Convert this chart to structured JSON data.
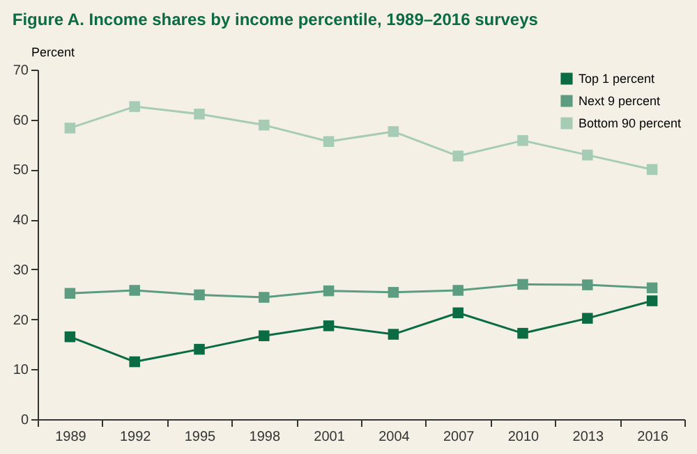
{
  "chart_data": {
    "type": "line",
    "title": "Figure A. Income shares by income percentile, 1989–2016 surveys",
    "ylabel": "Percent",
    "categories": [
      "1989",
      "1992",
      "1995",
      "1998",
      "2001",
      "2004",
      "2007",
      "2010",
      "2013",
      "2016"
    ],
    "series": [
      {
        "name": "Top 1 percent",
        "color": "#0b6b43",
        "values": [
          16.5,
          11.5,
          14.0,
          16.7,
          18.7,
          17.0,
          21.3,
          17.2,
          20.2,
          23.7
        ]
      },
      {
        "name": "Next 9 percent",
        "color": "#5c9c80",
        "values": [
          25.2,
          25.8,
          24.9,
          24.4,
          25.7,
          25.4,
          25.8,
          27.0,
          26.9,
          26.3
        ]
      },
      {
        "name": "Bottom 90 percent",
        "color": "#a6ccb6",
        "values": [
          58.3,
          62.6,
          61.1,
          58.9,
          55.6,
          57.6,
          52.7,
          55.8,
          52.9,
          50.0
        ]
      }
    ],
    "ylim": [
      0,
      70
    ],
    "yticks": [
      0,
      10,
      20,
      30,
      40,
      50,
      60,
      70
    ],
    "grid": false,
    "legend": "top right",
    "marker": "square",
    "line_style": "solid"
  }
}
